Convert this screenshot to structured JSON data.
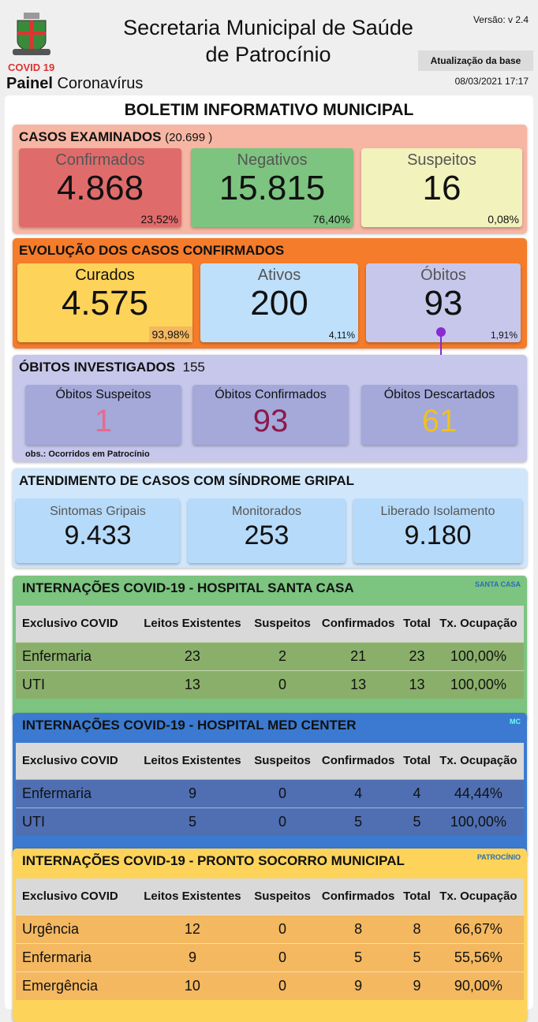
{
  "header": {
    "title_line1": "Secretaria Municipal de Saúde",
    "title_line2": "de Patrocínio",
    "covid": "COVID 19",
    "painel_bold": "Painel",
    "painel_rest": " Coronavírus",
    "version": "Versão: v 2.4",
    "update_label": "Atualização da base",
    "update_date": "08/03/2021 17:17",
    "logo_text": "PATROCÍNIO"
  },
  "bulletin_title": "BOLETIM INFORMATIVO MUNICIPAL",
  "examinados": {
    "title": "CASOS EXAMINADOS",
    "total": "(20.699  )",
    "cards": [
      {
        "label": "Confirmados",
        "value": "4.868",
        "pct": "23,52%"
      },
      {
        "label": "Negativos",
        "value": "15.815",
        "pct": "76,40%"
      },
      {
        "label": "Suspeitos",
        "value": "16",
        "pct": "0,08%"
      }
    ]
  },
  "evolucao": {
    "title": "EVOLUÇÃO DOS CASOS CONFIRMADOS",
    "cards": [
      {
        "label": "Curados",
        "value": "4.575",
        "pct": "93,98%"
      },
      {
        "label": "Ativos",
        "value": "200",
        "pct": "4,11%"
      },
      {
        "label": "Óbitos",
        "value": "93",
        "pct": "1,91%"
      }
    ]
  },
  "obitos": {
    "title": "ÓBITOS INVESTIGADOS",
    "total": "155",
    "note": "obs.: Ocorridos em Patrocínio",
    "cards": [
      {
        "label": "Óbitos Suspeitos",
        "value": "1",
        "color": "#e86a8e"
      },
      {
        "label": "Óbitos Confirmados",
        "value": "93",
        "color": "#8a1a4a"
      },
      {
        "label": "Óbitos Descartados",
        "value": "61",
        "color": "#f0c020"
      }
    ]
  },
  "gripal": {
    "title": "ATENDIMENTO DE CASOS COM SÍNDROME GRIPAL",
    "cards": [
      {
        "label": "Sintomas Gripais",
        "value": "9.433"
      },
      {
        "label": "Monitorados",
        "value": "253"
      },
      {
        "label": "Liberado Isolamento",
        "value": "9.180"
      }
    ]
  },
  "hospitals": [
    {
      "title": "INTERNAÇÕES COVID-19 - HOSPITAL SANTA CASA",
      "logo": "SANTA CASA",
      "bg": "#7cc47f",
      "row": "#8aaf6a",
      "text": "#111",
      "headers": [
        "Exclusivo COVID",
        "Leitos Existentes",
        "Suspeitos",
        "Confirmados",
        "Total",
        "Tx. Ocupação"
      ],
      "rows": [
        [
          "Enfermaria",
          "23",
          "2",
          "21",
          "23",
          "100,00%"
        ],
        [
          "UTI",
          "13",
          "0",
          "13",
          "13",
          "100,00%"
        ]
      ]
    },
    {
      "title": "INTERNAÇÕES COVID-19 - HOSPITAL MED CENTER",
      "logo": "MC",
      "bg": "#3b7ad0",
      "row": "#4f6fb2",
      "text": "#111",
      "headers": [
        "Exclusivo COVID",
        "Leitos Existentes",
        "Suspeitos",
        "Confirmados",
        "Total",
        "Tx. Ocupação"
      ],
      "rows": [
        [
          "Enfermaria",
          "9",
          "0",
          "4",
          "4",
          "44,44%"
        ],
        [
          "UTI",
          "5",
          "0",
          "5",
          "5",
          "100,00%"
        ]
      ]
    },
    {
      "title": "INTERNAÇÕES COVID-19 - PRONTO SOCORRO MUNICIPAL",
      "logo": "PATROCÍNIO",
      "bg": "#fdd35a",
      "row": "#f4b860",
      "text": "#111",
      "headers": [
        "Exclusivo COVID",
        "Leitos Existentes",
        "Suspeitos",
        "Confirmados",
        "Total",
        "Tx. Ocupação"
      ],
      "rows": [
        [
          "Urgência",
          "12",
          "0",
          "8",
          "8",
          "66,67%"
        ],
        [
          "Enfermaria",
          "9",
          "0",
          "5",
          "5",
          "55,56%"
        ],
        [
          "Emergência",
          "10",
          "0",
          "9",
          "9",
          "90,00%"
        ]
      ]
    }
  ]
}
